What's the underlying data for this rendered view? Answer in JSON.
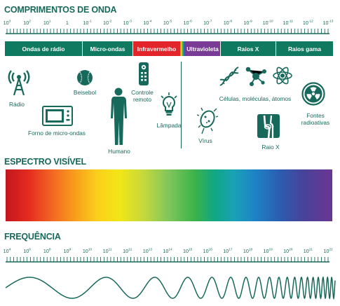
{
  "headings": {
    "wavelengths": "COMPRIMENTOS DE ONDA",
    "visible_spectrum": "ESPECTRO VISÍVEL",
    "frequency": "FREQUÊNCIA"
  },
  "wavelength_scale": {
    "base": "10",
    "exponents": [
      "3",
      "2",
      "1",
      "",
      "-1",
      "-2",
      "-3",
      "-4",
      "-5",
      "-6",
      "-7",
      "-8",
      "-9",
      "-10",
      "-11",
      "-12",
      "-13"
    ],
    "special_one": "1"
  },
  "bands": [
    {
      "label": "Ondas de rádio",
      "color": "#0f7a5f"
    },
    {
      "label": "Micro-ondas",
      "color": "#0f7a5f"
    },
    {
      "label": "Infravermelho",
      "color": "#e2252b"
    },
    {
      "label": "Ultravioleta",
      "color": "#7a3b96"
    },
    {
      "label": "Raios X",
      "color": "#0f7a5f"
    },
    {
      "label": "Raios gama",
      "color": "#0f7a5f"
    }
  ],
  "examples": {
    "radio": "Rádio",
    "microwave_oven": "Forno de micro-ondas",
    "baseball": "Beisebol",
    "human": "Humano",
    "remote_line1": "Controle",
    "remote_line2": "remoto",
    "lamp": "Lâmpada",
    "virus": "Vírus",
    "cells": "Células, moléculas, átomos",
    "xray": "Raio X",
    "radioactive_line1": "Fontes",
    "radioactive_line2": "radioativas"
  },
  "frequency_scale": {
    "base": "10",
    "exponents": [
      "4",
      "6",
      "8",
      "9",
      "10",
      "11",
      "12",
      "13",
      "14",
      "15",
      "16",
      "17",
      "18",
      "19",
      "20",
      "21",
      "22"
    ]
  },
  "colors": {
    "heading": "#17695b",
    "band_default": "#0f7a5f",
    "icon": "#17695b"
  }
}
